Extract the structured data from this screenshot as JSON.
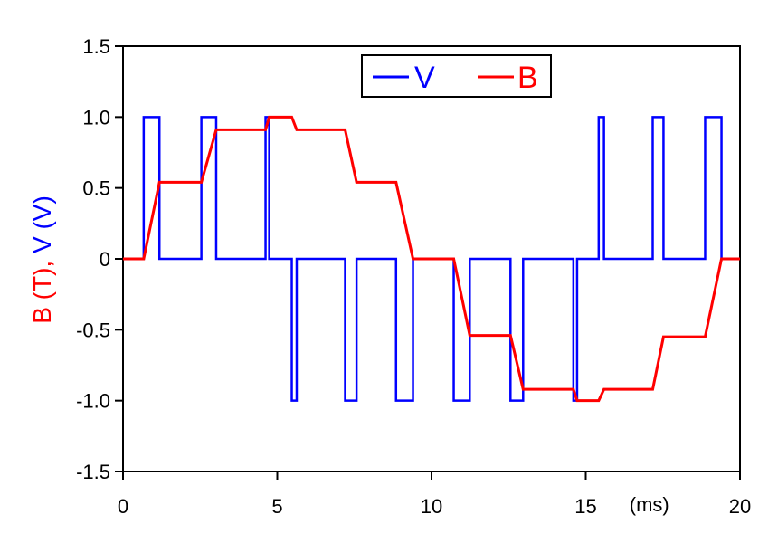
{
  "chart_data": {
    "type": "line",
    "xlabel": "",
    "x_unit_label": "(ms)",
    "ylabel_parts": [
      {
        "text": "B (T)",
        "color": "#ff0000"
      },
      {
        "text": ", ",
        "color": "#ff0000"
      },
      {
        "text": "V (V)",
        "color": "#0000ff"
      }
    ],
    "xlim": [
      0,
      20
    ],
    "ylim": [
      -1.5,
      1.5
    ],
    "x_ticks": [
      0,
      5,
      10,
      15,
      20
    ],
    "x_tick_labels": [
      "0",
      "5",
      "10",
      "15",
      "20"
    ],
    "y_ticks": [
      1.5,
      1.0,
      0.5,
      0,
      -0.5,
      -1.0,
      -1.5
    ],
    "y_tick_labels": [
      "1.5",
      "1.0",
      "0.5",
      "0",
      "-0.5",
      "-1.0",
      "-1.5"
    ],
    "grid": false,
    "legend_position": "top-center",
    "series": [
      {
        "name": "V",
        "color": "#0000ff",
        "x": [
          0,
          0.67,
          0.67,
          1.18,
          1.18,
          2.54,
          2.54,
          3.02,
          3.02,
          4.62,
          4.62,
          4.74,
          4.74,
          5.47,
          5.47,
          5.63,
          5.63,
          7.2,
          7.2,
          7.57,
          7.57,
          8.85,
          8.85,
          9.4,
          9.4,
          10.72,
          10.72,
          11.24,
          11.24,
          12.56,
          12.56,
          12.97,
          12.97,
          14.6,
          14.6,
          14.72,
          14.72,
          15.42,
          15.42,
          15.59,
          15.59,
          17.17,
          17.17,
          17.52,
          17.52,
          18.87,
          18.87,
          19.4,
          19.4,
          20
        ],
        "y": [
          0,
          0,
          1,
          1,
          0,
          0,
          1,
          1,
          0,
          0,
          1,
          1,
          0,
          0,
          -1,
          -1,
          0,
          0,
          -1,
          -1,
          0,
          0,
          -1,
          -1,
          0,
          0,
          -1,
          -1,
          0,
          0,
          -1,
          -1,
          0,
          0,
          -1,
          -1,
          0,
          0,
          1,
          1,
          0,
          0,
          1,
          1,
          0,
          0,
          1,
          1,
          0,
          0
        ]
      },
      {
        "name": "B",
        "color": "#ff0000",
        "x": [
          0,
          0.67,
          1.18,
          2.54,
          3.02,
          4.62,
          4.74,
          5.47,
          5.63,
          7.2,
          7.57,
          8.85,
          9.4,
          10.72,
          11.24,
          12.56,
          12.97,
          14.6,
          14.72,
          15.42,
          15.59,
          17.17,
          17.52,
          18.87,
          19.4,
          20
        ],
        "y": [
          0,
          0,
          0.54,
          0.54,
          0.91,
          0.91,
          1,
          1,
          0.91,
          0.91,
          0.54,
          0.54,
          0,
          0,
          -0.54,
          -0.54,
          -0.92,
          -0.92,
          -1,
          -1,
          -0.92,
          -0.92,
          -0.55,
          -0.55,
          0,
          0
        ]
      }
    ]
  }
}
